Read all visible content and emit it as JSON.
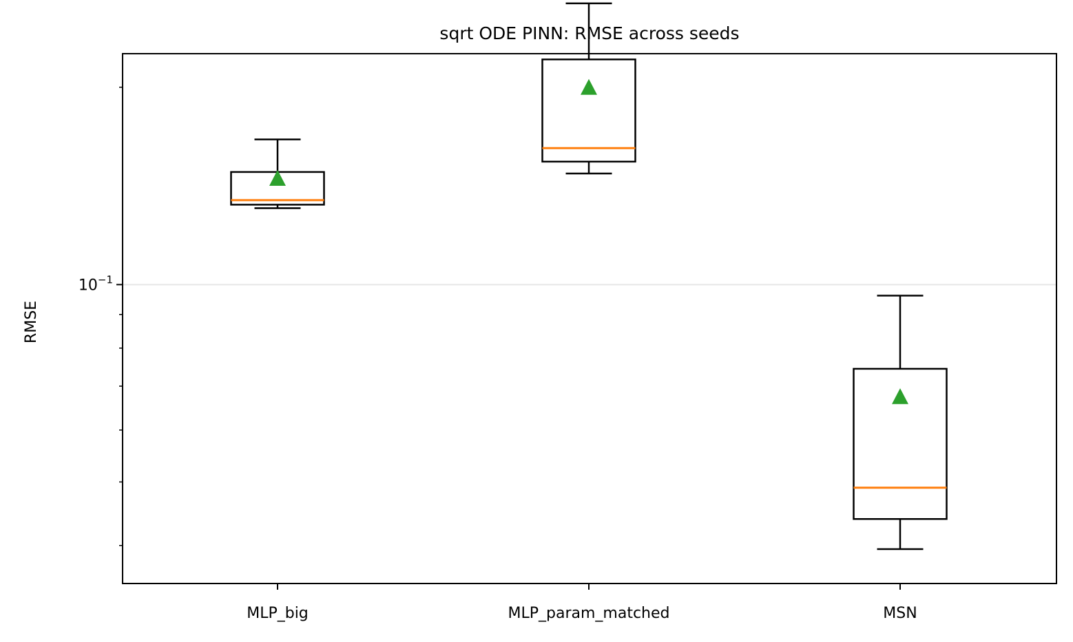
{
  "chart_data": {
    "type": "box",
    "title": "sqrt ODE PINN: RMSE across seeds",
    "xlabel": "",
    "ylabel": "RMSE",
    "yscale": "log",
    "ylim": [
      0.035,
      0.225
    ],
    "ytick_labels": [
      {
        "value": 0.1,
        "label": "10",
        "exponent": "−1"
      }
    ],
    "grid": "horizontal-major",
    "categories": [
      "MLP_big",
      "MLP_param_matched",
      "MSN"
    ],
    "boxes": [
      {
        "name": "MLP_big",
        "whislo": 0.1308,
        "q1": 0.1324,
        "med": 0.1345,
        "q3": 0.1485,
        "whishi": 0.1665,
        "mean": 0.1453
      },
      {
        "name": "MLP_param_matched",
        "whislo": 0.1477,
        "q1": 0.154,
        "med": 0.1615,
        "q3": 0.2205,
        "whishi": 0.2685,
        "mean": 0.2
      },
      {
        "name": "MSN",
        "whislo": 0.0395,
        "q1": 0.0439,
        "med": 0.049,
        "q3": 0.0744,
        "whishi": 0.0962,
        "mean": 0.0675
      }
    ],
    "colors": {
      "box": "#000000",
      "median": "#ff7f0e",
      "mean": "#2ca02c",
      "grid": "#e6e6e6"
    }
  }
}
